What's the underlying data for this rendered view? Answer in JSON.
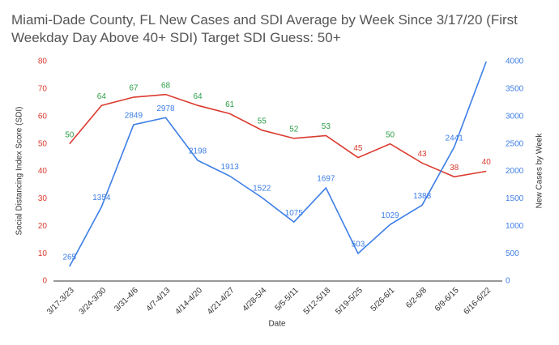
{
  "chart_data": {
    "type": "line",
    "title": "Miami-Dade County, FL New Cases and SDI Average by Week Since 3/17/20 (First Weekday Day Above 40+ SDI) Target SDI Guess: 50+",
    "x_label": "Date",
    "y_label": "Social Distancing Index Score (SDI)",
    "y2_label": "New Cases by Week",
    "categories": [
      "3/17-3/23",
      "3/24-3/30",
      "3/31-4/6",
      "4/7-4/13",
      "4/14-4/20",
      "4/21-4/27",
      "4/28-5/4",
      "5/5-5/11",
      "5/12-5/18",
      "5/19-5/25",
      "5/26-6/1",
      "6/2-6/8",
      "6/9-6/15",
      "6/16-6/22"
    ],
    "series": [
      {
        "name": "SDI",
        "color": "#db3b2f",
        "values": [
          50,
          64,
          67,
          68,
          64,
          61,
          55,
          52,
          53,
          45,
          50,
          43,
          38,
          40
        ],
        "value_label_colors": [
          "#2e9e48",
          "#2e9e48",
          "#2e9e48",
          "#2e9e48",
          "#2e9e48",
          "#2e9e48",
          "#2e9e48",
          "#2e9e48",
          "#2e9e48",
          "#db3b2f",
          "#2e9e48",
          "#db3b2f",
          "#db3b2f",
          "#db3b2f"
        ]
      },
      {
        "name": "New Cases",
        "color": "#3d7ee6",
        "axis": "y2",
        "values": [
          265,
          1354,
          2849,
          2978,
          2198,
          1913,
          1522,
          1075,
          1697,
          503,
          1029,
          1383,
          2441,
          4000
        ]
      }
    ],
    "ylim": [
      0,
      80
    ],
    "yticks": [
      0,
      10,
      20,
      30,
      40,
      50,
      60,
      70,
      80
    ],
    "ytick_color": "#db3b2f",
    "y2lim": [
      0,
      4000
    ],
    "y2ticks": [
      0,
      500,
      1000,
      1500,
      2000,
      2500,
      3000,
      3500,
      4000
    ],
    "y2tick_color": "#3d7ee6",
    "grid": false
  }
}
